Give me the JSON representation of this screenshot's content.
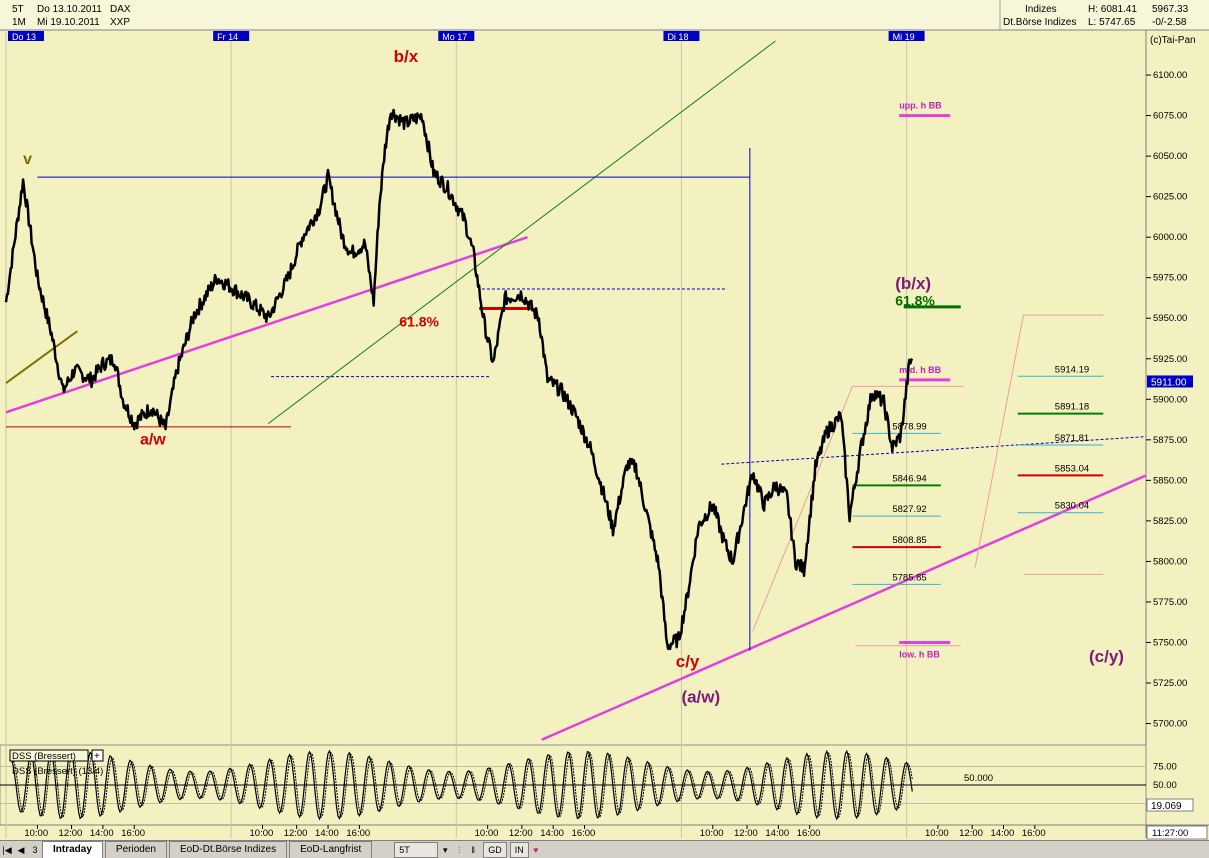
{
  "header": {
    "timeframe": "5T",
    "range": "1M",
    "date_from": "Do 13.10.2011",
    "date_to": "Mi 19.10.2011",
    "symbol": "DAX",
    "exchange": "XXP",
    "category": "Indizes",
    "source": "Dt.Börse Indizes",
    "high_label": "H: 6081.41",
    "low_label": "L: 5747.65",
    "last": "5967.33",
    "change": "-0/-2.58",
    "copyright": "(c)Tai-Pan"
  },
  "day_labels": [
    {
      "label": "Do 13",
      "x": 0
    },
    {
      "label": "Fr 14",
      "x": 79
    },
    {
      "label": "Mo 17",
      "x": 158
    },
    {
      "label": "Di 18",
      "x": 237
    },
    {
      "label": "Mi 19",
      "x": 316
    }
  ],
  "chart_data": {
    "type": "line",
    "title": "",
    "x_unit": "5-minute bars, 79 per trading day (08:00 - 22:00)",
    "x_ticks": [
      {
        "label": "10:00",
        "x": 11
      },
      {
        "label": "12:00",
        "x": 23
      },
      {
        "label": "14:00",
        "x": 34
      },
      {
        "label": "16:00",
        "x": 45
      },
      {
        "label": "10:00",
        "x": 90
      },
      {
        "label": "12:00",
        "x": 102
      },
      {
        "label": "14:00",
        "x": 113
      },
      {
        "label": "16:00",
        "x": 124
      },
      {
        "label": "10:00",
        "x": 169
      },
      {
        "label": "12:00",
        "x": 181
      },
      {
        "label": "14:00",
        "x": 192
      },
      {
        "label": "16:00",
        "x": 203
      },
      {
        "label": "10:00",
        "x": 248
      },
      {
        "label": "12:00",
        "x": 260
      },
      {
        "label": "14:00",
        "x": 271
      },
      {
        "label": "16:00",
        "x": 282
      },
      {
        "label": "10:00",
        "x": 327
      },
      {
        "label": "12:00",
        "x": 339
      },
      {
        "label": "14:00",
        "x": 350
      },
      {
        "label": "16:00",
        "x": 361
      }
    ],
    "y_ticks": [
      5700,
      5725,
      5750,
      5775,
      5800,
      5825,
      5850,
      5875,
      5900,
      5925,
      5950,
      5975,
      6000,
      6025,
      6050,
      6075,
      6100
    ],
    "ylim": [
      5688,
      6121
    ],
    "price_label": "5911.00",
    "price_anchors": [
      [
        0,
        5960
      ],
      [
        6,
        6035
      ],
      [
        11,
        5975
      ],
      [
        16,
        5940
      ],
      [
        20,
        5905
      ],
      [
        24,
        5918
      ],
      [
        30,
        5912
      ],
      [
        34,
        5922
      ],
      [
        38,
        5925
      ],
      [
        41,
        5900
      ],
      [
        45,
        5885
      ],
      [
        51,
        5895
      ],
      [
        56,
        5882
      ],
      [
        60,
        5918
      ],
      [
        66,
        5952
      ],
      [
        74,
        5975
      ],
      [
        80,
        5968
      ],
      [
        86,
        5960
      ],
      [
        92,
        5950
      ],
      [
        99,
        5975
      ],
      [
        104,
        6000
      ],
      [
        110,
        6018
      ],
      [
        113,
        6037
      ],
      [
        118,
        6000
      ],
      [
        121,
        5990
      ],
      [
        126,
        5996
      ],
      [
        129,
        5960
      ],
      [
        131,
        6020
      ],
      [
        133,
        6055
      ],
      [
        135,
        6078
      ],
      [
        140,
        6070
      ],
      [
        146,
        6075
      ],
      [
        150,
        6040
      ],
      [
        155,
        6030
      ],
      [
        161,
        6010
      ],
      [
        164,
        5990
      ],
      [
        168,
        5945
      ],
      [
        171,
        5922
      ],
      [
        175,
        5962
      ],
      [
        181,
        5965
      ],
      [
        187,
        5950
      ],
      [
        190,
        5912
      ],
      [
        195,
        5905
      ],
      [
        200,
        5890
      ],
      [
        205,
        5870
      ],
      [
        210,
        5840
      ],
      [
        213,
        5820
      ],
      [
        218,
        5860
      ],
      [
        221,
        5858
      ],
      [
        229,
        5798
      ],
      [
        232,
        5748
      ],
      [
        236,
        5752
      ],
      [
        239,
        5778
      ],
      [
        243,
        5822
      ],
      [
        248,
        5835
      ],
      [
        252,
        5812
      ],
      [
        255,
        5800
      ],
      [
        259,
        5832
      ],
      [
        262,
        5855
      ],
      [
        266,
        5835
      ],
      [
        270,
        5847
      ],
      [
        274,
        5840
      ],
      [
        277,
        5800
      ],
      [
        280,
        5795
      ],
      [
        284,
        5858
      ],
      [
        288,
        5880
      ],
      [
        293,
        5890
      ],
      [
        296,
        5828
      ],
      [
        300,
        5870
      ],
      [
        304,
        5905
      ],
      [
        308,
        5898
      ],
      [
        311,
        5870
      ],
      [
        314,
        5878
      ],
      [
        317,
        5922
      ],
      [
        318,
        5925
      ]
    ],
    "dss_levels": [
      75,
      50,
      25
    ],
    "dss_ylim": [
      0,
      100
    ],
    "dss_reference": 50,
    "dss_value_label": "19.069",
    "dss_reference_label": "50.000",
    "dss_legend_labels": [
      "DSS (Bressert)",
      "DSS (Bressert) (13/4)"
    ],
    "wave_labels": [
      {
        "text": "v",
        "x": 6,
        "y": 6045,
        "color": "#7a6a00",
        "size": 16
      },
      {
        "text": "b/x",
        "x": 136,
        "y": 6108,
        "color": "#d00000",
        "size": 17
      },
      {
        "text": "a/w",
        "x": 47,
        "y": 5872,
        "color": "#d00000",
        "size": 16
      },
      {
        "text": "61.8%",
        "x": 138,
        "y": 5945,
        "color": "#d00000",
        "size": 14
      },
      {
        "text": "c/y",
        "x": 235,
        "y": 5735,
        "color": "#d00000",
        "size": 17
      },
      {
        "text": "(a/w)",
        "x": 237,
        "y": 5713,
        "color": "#7b1a7b",
        "size": 17
      },
      {
        "text": "(b/x)",
        "x": 312,
        "y": 5968,
        "color": "#7b1a7b",
        "size": 17
      },
      {
        "text": "61.8%",
        "x": 312,
        "y": 5958,
        "color": "#007000",
        "size": 14
      },
      {
        "text": "(c/y)",
        "x": 380,
        "y": 5738,
        "color": "#7b1a7b",
        "size": 17
      }
    ],
    "bollinger": [
      {
        "label": "upp. h BB",
        "x": 312,
        "y": 6075
      },
      {
        "label": "mid. h BB",
        "x": 312,
        "y": 5912
      },
      {
        "label": "low. h BB",
        "x": 312,
        "y": 5750
      }
    ],
    "fib_left": [
      {
        "label": "5878.99",
        "value": 5878.99,
        "color": "#40b0c8"
      },
      {
        "label": "5846.94",
        "value": 5846.94,
        "color": "#008000"
      },
      {
        "label": "5827.92",
        "value": 5827.92,
        "color": "#40b0c8"
      },
      {
        "label": "5808.85",
        "value": 5808.85,
        "color": "#d00000"
      },
      {
        "label": "5785.85",
        "value": 5785.85,
        "color": "#40b0c8"
      }
    ],
    "fib_right": [
      {
        "label": "5914.19",
        "value": 5914.19,
        "color": "#40b0c8"
      },
      {
        "label": "5891.18",
        "value": 5891.18,
        "color": "#008000"
      },
      {
        "label": "5871.81",
        "value": 5871.81,
        "color": "#40b0c8"
      },
      {
        "label": "5853.04",
        "value": 5853.04,
        "color": "#d00000"
      },
      {
        "label": "5830.04",
        "value": 5830.04,
        "color": "#40b0c8"
      }
    ],
    "colors": {
      "background": "#f4f1c0",
      "price": "#000000",
      "trend": "#e040e0",
      "support": "#0000c0",
      "day_label_bg": "#0000c0"
    }
  },
  "tabs": [
    {
      "label": "Intraday",
      "active": true
    },
    {
      "label": "Perioden",
      "active": false
    },
    {
      "label": "EoD-Dt.Börse Indizes",
      "active": false
    },
    {
      "label": "EoD-Langfrist",
      "active": false
    }
  ],
  "toolbar": {
    "page_label": "3",
    "timeframe": "5T",
    "gd_label": "GD",
    "in_label": "IN",
    "clock": "11:27:00"
  }
}
